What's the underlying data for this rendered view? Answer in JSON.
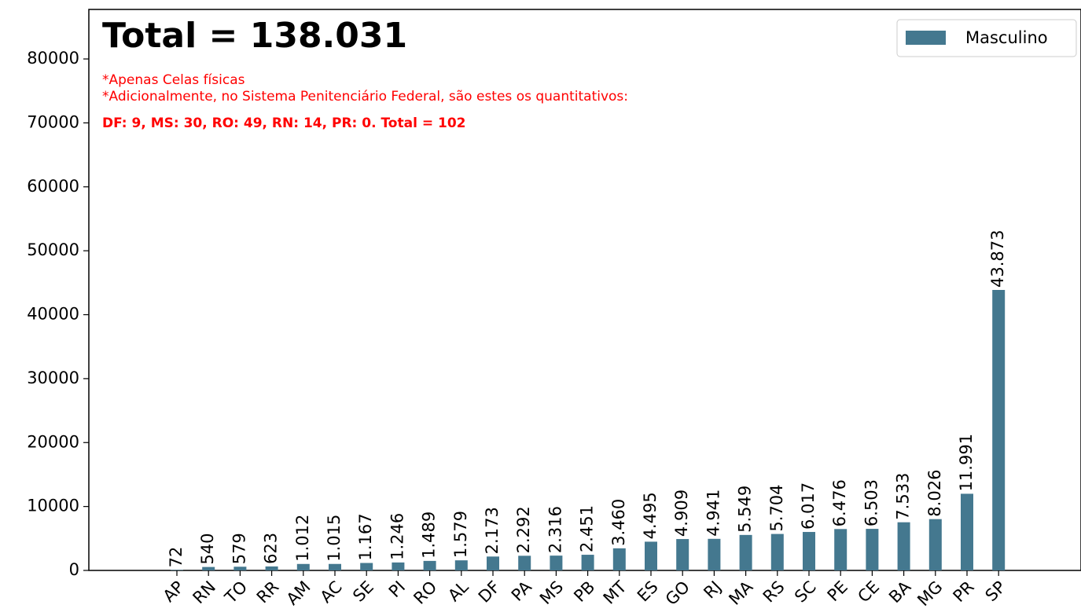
{
  "chart_data": {
    "type": "bar",
    "annotations": [
      "Total = 138.031",
      "*Apenas Celas físicas",
      "*Adicionalmente, no Sistema Penitenciário Federal, são estes os quantitativos:",
      "DF: 9, MS: 30, RO: 49, RN: 14, PR: 0. Total = 102"
    ],
    "categories": [
      "AP",
      "RN",
      "TO",
      "RR",
      "AM",
      "AC",
      "SE",
      "PI",
      "RO",
      "AL",
      "DF",
      "PA",
      "MS",
      "PB",
      "MT",
      "ES",
      "GO",
      "RJ",
      "MA",
      "RS",
      "SC",
      "PE",
      "CE",
      "BA",
      "MG",
      "PR",
      "SP"
    ],
    "series": [
      {
        "name": "Masculino",
        "color": "#44788f",
        "values": [
          72,
          540,
          579,
          623,
          1012,
          1015,
          1167,
          1246,
          1489,
          1579,
          2173,
          2292,
          2316,
          2451,
          3460,
          4495,
          4909,
          4941,
          5549,
          5704,
          6017,
          6476,
          6503,
          7533,
          8026,
          11991,
          43873
        ],
        "value_labels": [
          "72",
          "540",
          "579",
          "623",
          "1.012",
          "1.015",
          "1.167",
          "1.246",
          "1.489",
          "1.579",
          "2.173",
          "2.292",
          "2.316",
          "2.451",
          "3.460",
          "4.495",
          "4.909",
          "4.941",
          "5.549",
          "5.704",
          "6.017",
          "6.476",
          "6.503",
          "7.533",
          "8.026",
          "11.991",
          "43.873"
        ]
      }
    ],
    "ylim": [
      0,
      87746
    ],
    "yticks": [
      0,
      10000,
      20000,
      30000,
      40000,
      50000,
      60000,
      70000,
      80000
    ],
    "legend": "upper right"
  }
}
